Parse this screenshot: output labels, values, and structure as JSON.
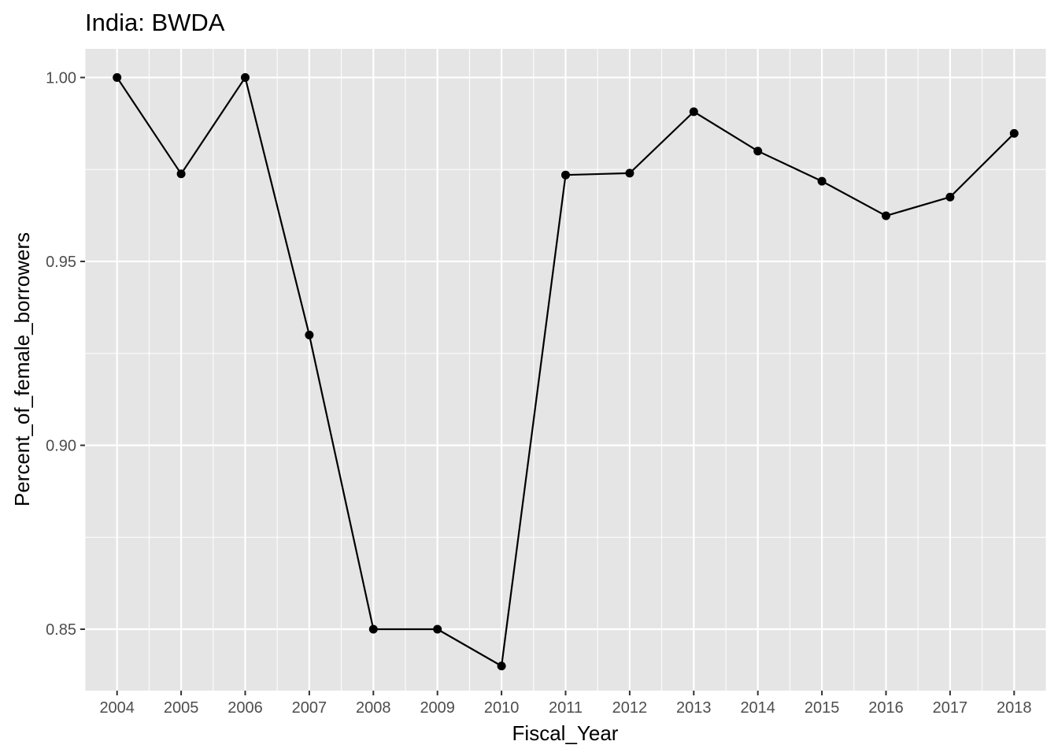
{
  "chart_data": {
    "type": "line",
    "title": "India:  BWDA",
    "xlabel": "Fiscal_Year",
    "ylabel": "Percent_of_female_borrowers",
    "x": [
      2004,
      2005,
      2006,
      2007,
      2008,
      2009,
      2010,
      2011,
      2012,
      2013,
      2014,
      2015,
      2016,
      2017,
      2018
    ],
    "series": [
      {
        "values": [
          1.0,
          0.9738,
          1.0,
          0.93,
          0.85,
          0.85,
          0.84,
          0.9735,
          0.974,
          0.9907,
          0.98,
          0.9718,
          0.9624,
          0.9675,
          0.9848
        ]
      }
    ],
    "xlim": [
      2003.5,
      2018.5
    ],
    "ylim": [
      0.8333,
      1.0078
    ],
    "x_ticks": [
      "2004",
      "2005",
      "2006",
      "2007",
      "2008",
      "2009",
      "2010",
      "2011",
      "2012",
      "2013",
      "2014",
      "2015",
      "2016",
      "2017",
      "2018"
    ],
    "y_ticks": [
      "0.85",
      "0.90",
      "0.95",
      "1.00"
    ],
    "grid": true,
    "colors": {
      "panel": "#e5e5e5",
      "grid": "#ffffff",
      "line": "#000000",
      "point": "#000000",
      "tick_text": "#4d4d4d"
    }
  }
}
